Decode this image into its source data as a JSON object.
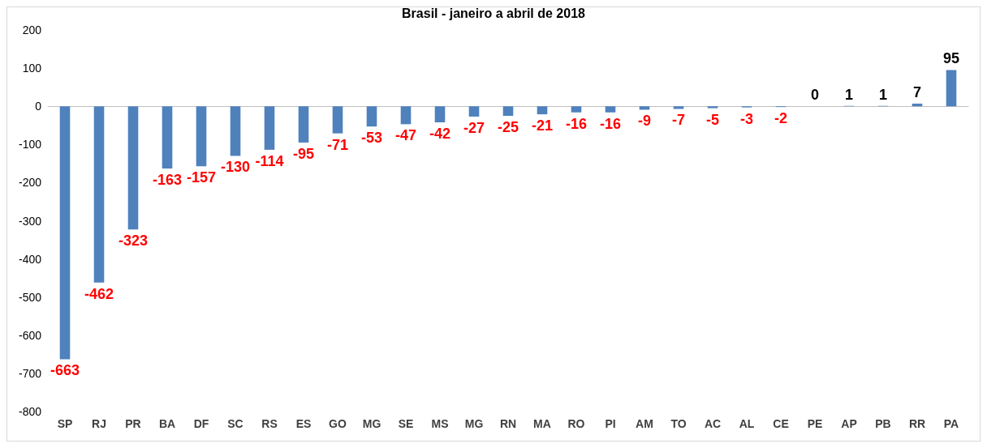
{
  "chart_data": {
    "type": "bar",
    "title": "Brasil - janeiro a abril de 2018",
    "categories": [
      "SP",
      "RJ",
      "PR",
      "BA",
      "DF",
      "SC",
      "RS",
      "ES",
      "GO",
      "MG",
      "SE",
      "MS",
      "MG",
      "RN",
      "MA",
      "RO",
      "PI",
      "AM",
      "TO",
      "AC",
      "AL",
      "CE",
      "PE",
      "AP",
      "PB",
      "RR",
      "PA"
    ],
    "values": [
      -663,
      -462,
      -323,
      -163,
      -157,
      -130,
      -114,
      -95,
      -71,
      -53,
      -47,
      -42,
      -27,
      -25,
      -21,
      -16,
      -16,
      -9,
      -7,
      -5,
      -3,
      -2,
      0,
      1,
      1,
      7,
      95
    ],
    "color": "#4f81bd",
    "ylim": [
      -800,
      200
    ],
    "yticks": [
      -800,
      -700,
      -600,
      -500,
      -400,
      -300,
      -200,
      -100,
      0,
      100,
      200
    ],
    "data_labels": true
  }
}
